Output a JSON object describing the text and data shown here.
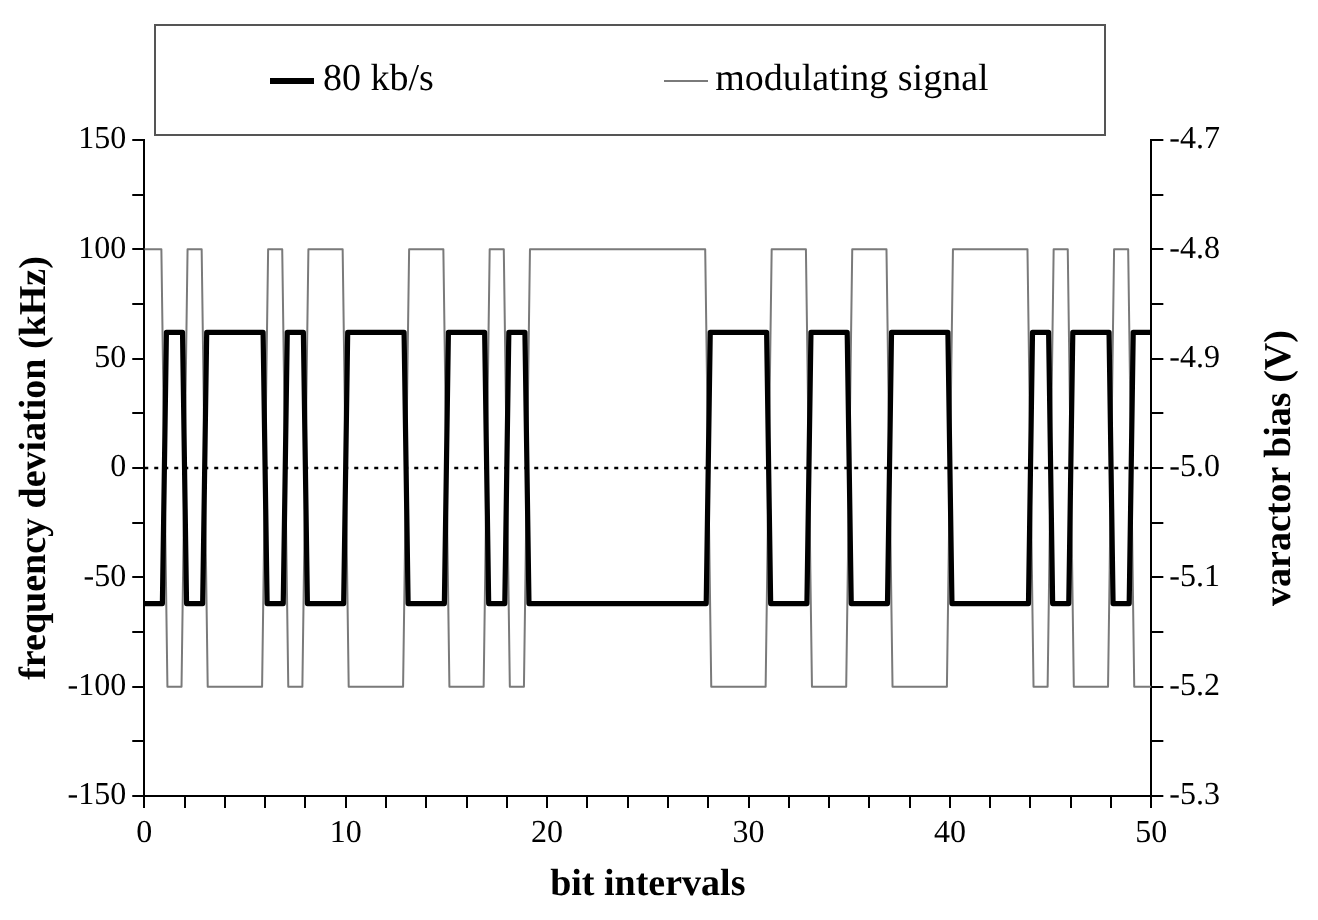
{
  "chart_data": {
    "type": "line",
    "xlabel": "bit intervals",
    "ylabel": "frequency deviation (kHz)",
    "y2label": "varactor bias (V)",
    "series": [
      {
        "name": "80 kb/s",
        "color": "#000000",
        "x": [
          0,
          0.9,
          1.1,
          1.9,
          2.1,
          2.9,
          3.1,
          5.9,
          6.1,
          6.9,
          7.1,
          7.9,
          8.1,
          9.9,
          10.1,
          12.9,
          13.1,
          14.9,
          15.1,
          16.9,
          17.1,
          17.9,
          18.1,
          18.9,
          19.1,
          27.9,
          28.1,
          30.9,
          31.1,
          32.9,
          33.1,
          34.9,
          35.1,
          36.9,
          37.1,
          39.9,
          40.1,
          43.9,
          44.1,
          44.9,
          45.1,
          45.9,
          46.1,
          47.9,
          48.1,
          48.9,
          49.1,
          50
        ],
        "values": [
          -62,
          -62,
          62,
          62,
          -62,
          -62,
          62,
          62,
          -62,
          -62,
          62,
          62,
          -62,
          -62,
          62,
          62,
          -62,
          -62,
          62,
          62,
          -62,
          -62,
          62,
          62,
          -62,
          -62,
          62,
          62,
          -62,
          -62,
          62,
          62,
          -62,
          -62,
          62,
          62,
          -62,
          -62,
          62,
          62,
          -62,
          -62,
          62,
          62,
          -62,
          -62,
          62,
          62
        ]
      },
      {
        "name": "modulating signal",
        "color": "#7a7a7a",
        "axis": "y2",
        "x": [
          0,
          0.85,
          1.15,
          1.85,
          2.15,
          2.85,
          3.15,
          5.85,
          6.15,
          6.85,
          7.15,
          7.85,
          8.15,
          9.85,
          10.15,
          12.85,
          13.15,
          14.85,
          15.15,
          16.85,
          17.15,
          17.85,
          18.15,
          18.85,
          19.15,
          27.85,
          28.15,
          30.85,
          31.15,
          32.85,
          33.15,
          34.85,
          35.15,
          36.85,
          37.15,
          39.85,
          40.15,
          43.85,
          44.15,
          44.85,
          45.15,
          45.85,
          46.15,
          47.85,
          48.15,
          48.85,
          49.15,
          50
        ],
        "values": [
          -4.8,
          -4.8,
          -5.2,
          -5.2,
          -4.8,
          -4.8,
          -5.2,
          -5.2,
          -4.8,
          -4.8,
          -5.2,
          -5.2,
          -4.8,
          -4.8,
          -5.2,
          -5.2,
          -4.8,
          -4.8,
          -5.2,
          -5.2,
          -4.8,
          -4.8,
          -5.2,
          -5.2,
          -4.8,
          -4.8,
          -5.2,
          -5.2,
          -4.8,
          -4.8,
          -5.2,
          -5.2,
          -4.8,
          -4.8,
          -5.2,
          -5.2,
          -4.8,
          -4.8,
          -5.2,
          -5.2,
          -4.8,
          -4.8,
          -5.2,
          -5.2,
          -4.8,
          -4.8,
          -5.2,
          -5.2
        ]
      }
    ],
    "xlim": [
      0,
      50
    ],
    "xticks": [
      0,
      {
        "value": 2,
        "label": null
      },
      {
        "value": 4,
        "label": null
      },
      {
        "value": 6,
        "label": null
      },
      {
        "value": 8,
        "label": null
      },
      10,
      {
        "value": 12,
        "label": null
      },
      {
        "value": 14,
        "label": null
      },
      {
        "value": 16,
        "label": null
      },
      {
        "value": 18,
        "label": null
      },
      20,
      {
        "value": 22,
        "label": null
      },
      {
        "value": 24,
        "label": null
      },
      {
        "value": 26,
        "label": null
      },
      {
        "value": 28,
        "label": null
      },
      30,
      {
        "value": 32,
        "label": null
      },
      {
        "value": 34,
        "label": null
      },
      {
        "value": 36,
        "label": null
      },
      {
        "value": 38,
        "label": null
      },
      40,
      {
        "value": 42,
        "label": null
      },
      {
        "value": 44,
        "label": null
      },
      {
        "value": 46,
        "label": null
      },
      {
        "value": 48,
        "label": null
      },
      50
    ],
    "ylim": [
      -150,
      150
    ],
    "yticks": [
      -150,
      {
        "value": -125,
        "label": null
      },
      -100,
      {
        "value": -75,
        "label": null
      },
      -50,
      {
        "value": -25,
        "label": null
      },
      0,
      {
        "value": 25,
        "label": null
      },
      50,
      {
        "value": 75,
        "label": null
      },
      100,
      {
        "value": 125,
        "label": null
      },
      150
    ],
    "y2lim": [
      -5.3,
      -4.7
    ],
    "y2ticks": [
      -5.3,
      {
        "value": -5.25,
        "label": null
      },
      -5.2,
      {
        "value": -5.15,
        "label": null
      },
      -5.1,
      {
        "value": -5.05,
        "label": null
      },
      {
        "value": -5.0,
        "label": "-5.0"
      },
      {
        "value": -4.95,
        "label": null
      },
      -4.9,
      {
        "value": -4.85,
        "label": null
      },
      -4.8,
      {
        "value": -4.75,
        "label": null
      },
      -4.7
    ],
    "ref_lines": [
      {
        "axis": "y",
        "value": 0,
        "color": "#000000",
        "line_style": "dotted"
      }
    ],
    "legend": "top",
    "marker": "none",
    "line_style": "solid",
    "grid": false
  }
}
